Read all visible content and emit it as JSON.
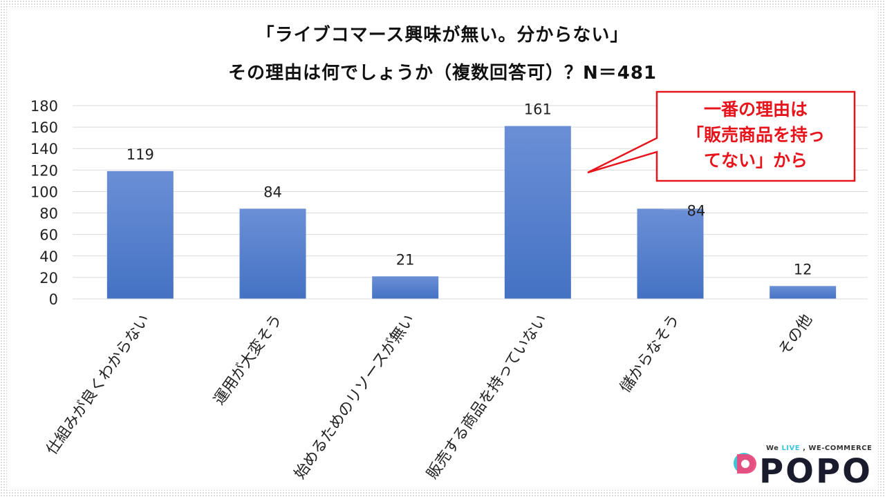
{
  "chart_data": {
    "type": "bar",
    "title": "「ライブコマース興味が無い。分からない」",
    "subtitle": "その理由は何でしょうか（複数回答可）？N＝481",
    "categories": [
      "仕組みが良くわからない",
      "運用が大変そう",
      "始めるためのリソースが無い",
      "販売する商品を持っていない",
      "儲からなそう",
      "その他"
    ],
    "values": [
      119,
      84,
      21,
      161,
      84,
      12
    ],
    "ylim": [
      0,
      180
    ],
    "yticks": [
      0,
      20,
      40,
      60,
      80,
      100,
      120,
      140,
      160,
      180
    ],
    "grid": true,
    "bar_color": "#4472c4",
    "xlabel": "",
    "ylabel": ""
  },
  "callout": {
    "text": "一番の理由は\n「販売商品を持っ\nてない」から",
    "color": "#e8141c"
  },
  "logo": {
    "name": "POPO",
    "tagline_we": "We ",
    "tagline_live": "LIVE",
    "tagline_rest": " , WE-COMMERCE",
    "brand_color": "#f0457a",
    "accent_color": "#3ec6d8"
  }
}
